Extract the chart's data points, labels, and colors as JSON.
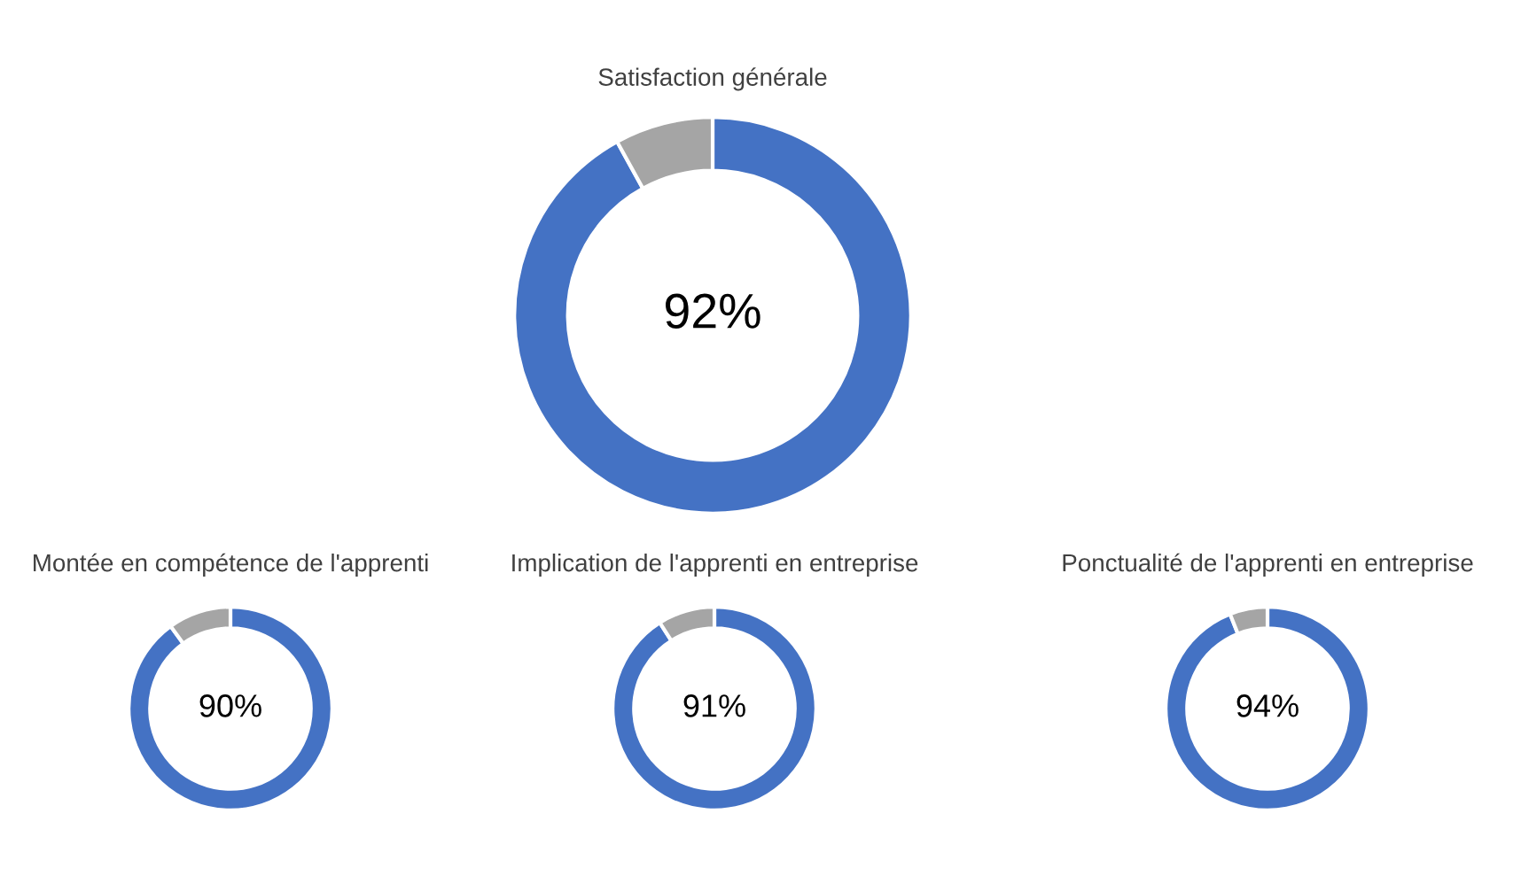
{
  "chart_data": [
    {
      "type": "donut",
      "title": "Satisfaction générale",
      "categories": [
        null,
        null
      ],
      "values": [
        92,
        8
      ],
      "colors": [
        "#4472c4",
        "#a5a5a5"
      ],
      "value_labels": [
        "92%",
        null
      ]
    },
    {
      "type": "donut",
      "title": "Montée en compétence de l'apprenti",
      "categories": [
        null,
        null
      ],
      "values": [
        90,
        10
      ],
      "colors": [
        "#4472c4",
        "#a5a5a5"
      ],
      "value_labels": [
        "90%",
        null
      ]
    },
    {
      "type": "donut",
      "title": "Implication de l'apprenti en entreprise",
      "categories": [
        null,
        null
      ],
      "values": [
        91,
        9
      ],
      "colors": [
        "#4472c4",
        "#a5a5a5"
      ],
      "value_labels": [
        "91%",
        null
      ]
    },
    {
      "type": "donut",
      "title": "Ponctualité de l'apprenti en entreprise",
      "categories": [
        null,
        null
      ],
      "values": [
        94,
        6
      ],
      "colors": [
        "#4472c4",
        "#a5a5a5"
      ],
      "value_labels": [
        "94%",
        null
      ]
    }
  ]
}
